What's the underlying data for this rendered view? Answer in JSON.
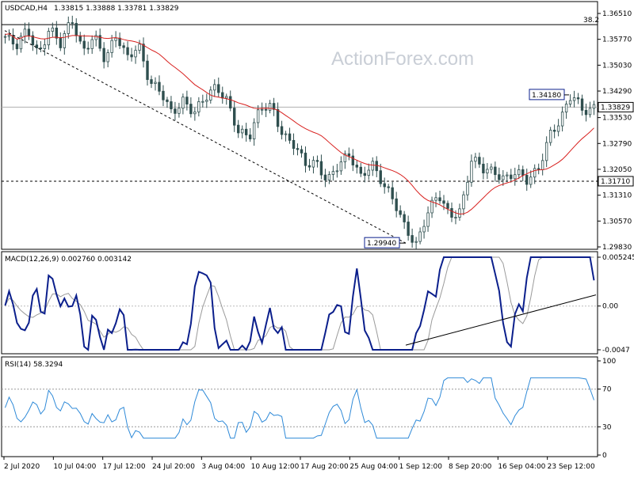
{
  "header": {
    "symbol": "USDCAD,H4",
    "ohlc": "1.33815 1.33888 1.33781 1.33829",
    "watermark": "ActionForex.com"
  },
  "colors": {
    "candle": "#2f4f4f",
    "ma": "#d8201e",
    "macd": "#0b1f8c",
    "signal": "#9a9a9a",
    "rsi": "#2f8ad8",
    "trend": "#000000",
    "level_box": "#0b1f8c"
  },
  "chart_data": [
    {
      "type": "candlestick",
      "name": "price",
      "ylim": [
        1.2983,
        1.3651
      ],
      "y_ticks": [
        "1.36510",
        "1.35770",
        "1.35030",
        "1.34290",
        "1.33530",
        "1.32790",
        "1.32050",
        "1.31310",
        "1.30570",
        "1.29830"
      ],
      "y_tick_values": [
        1.3651,
        1.3577,
        1.3503,
        1.3429,
        1.3353,
        1.3279,
        1.3205,
        1.3131,
        1.3057,
        1.2983
      ],
      "fib_label": "38.2",
      "fib_level": 1.3619,
      "current_price": "1.33829",
      "current_value": 1.33829,
      "support_label": "1.31710",
      "support_value": 1.3171,
      "high_label": "1.34180",
      "high_value": 1.3418,
      "low_label": "1.29940",
      "low_value": 1.2994,
      "close_path": [
        1.3585,
        1.3548,
        1.3605,
        1.354,
        1.3612,
        1.3555,
        1.363,
        1.3548,
        1.3595,
        1.351,
        1.3582,
        1.353,
        1.357,
        1.3448,
        1.342,
        1.3368,
        1.341,
        1.3365,
        1.34,
        1.3442,
        1.341,
        1.3312,
        1.329,
        1.338,
        1.3395,
        1.3305,
        1.3268,
        1.3215,
        1.3232,
        1.3178,
        1.3212,
        1.324,
        1.3188,
        1.3231,
        1.316,
        1.3105,
        1.304,
        1.2998,
        1.308,
        1.3125,
        1.307,
        1.3095,
        1.324,
        1.3198,
        1.3192,
        1.3185,
        1.3205,
        1.3165,
        1.3198,
        1.331,
        1.3355,
        1.3418,
        1.3362,
        1.3383
      ]
    },
    {
      "type": "line",
      "name": "MACD(12,26,9)",
      "label": "MACD(12,26,9) 0.002760 0.003142",
      "ylim": [
        -0.0047,
        0.005245
      ],
      "y_ticks": [
        "0.005245",
        "0.00",
        "-0.0047"
      ],
      "y_tick_values": [
        0.005245,
        0.0,
        -0.0047
      ],
      "last_macd": 0.00276,
      "last_signal": 0.003142
    },
    {
      "type": "line",
      "name": "RSI(14)",
      "label": "RSI(14) 58.3294",
      "ylim": [
        0,
        100
      ],
      "y_ticks": [
        "100",
        "70",
        "30",
        "0"
      ],
      "y_tick_values": [
        100,
        70,
        30,
        0
      ],
      "last": 58.3294
    }
  ],
  "x_axis": {
    "labels": [
      "2 Jul 2020",
      "10 Jul 04:00",
      "17 Jul 12:00",
      "24 Jul 20:00",
      "3 Aug 04:00",
      "10 Aug 12:00",
      "17 Aug 20:00",
      "25 Aug 04:00",
      "1 Sep 12:00",
      "8 Sep 20:00",
      "16 Sep 04:00",
      "23 Sep 12:00"
    ]
  }
}
